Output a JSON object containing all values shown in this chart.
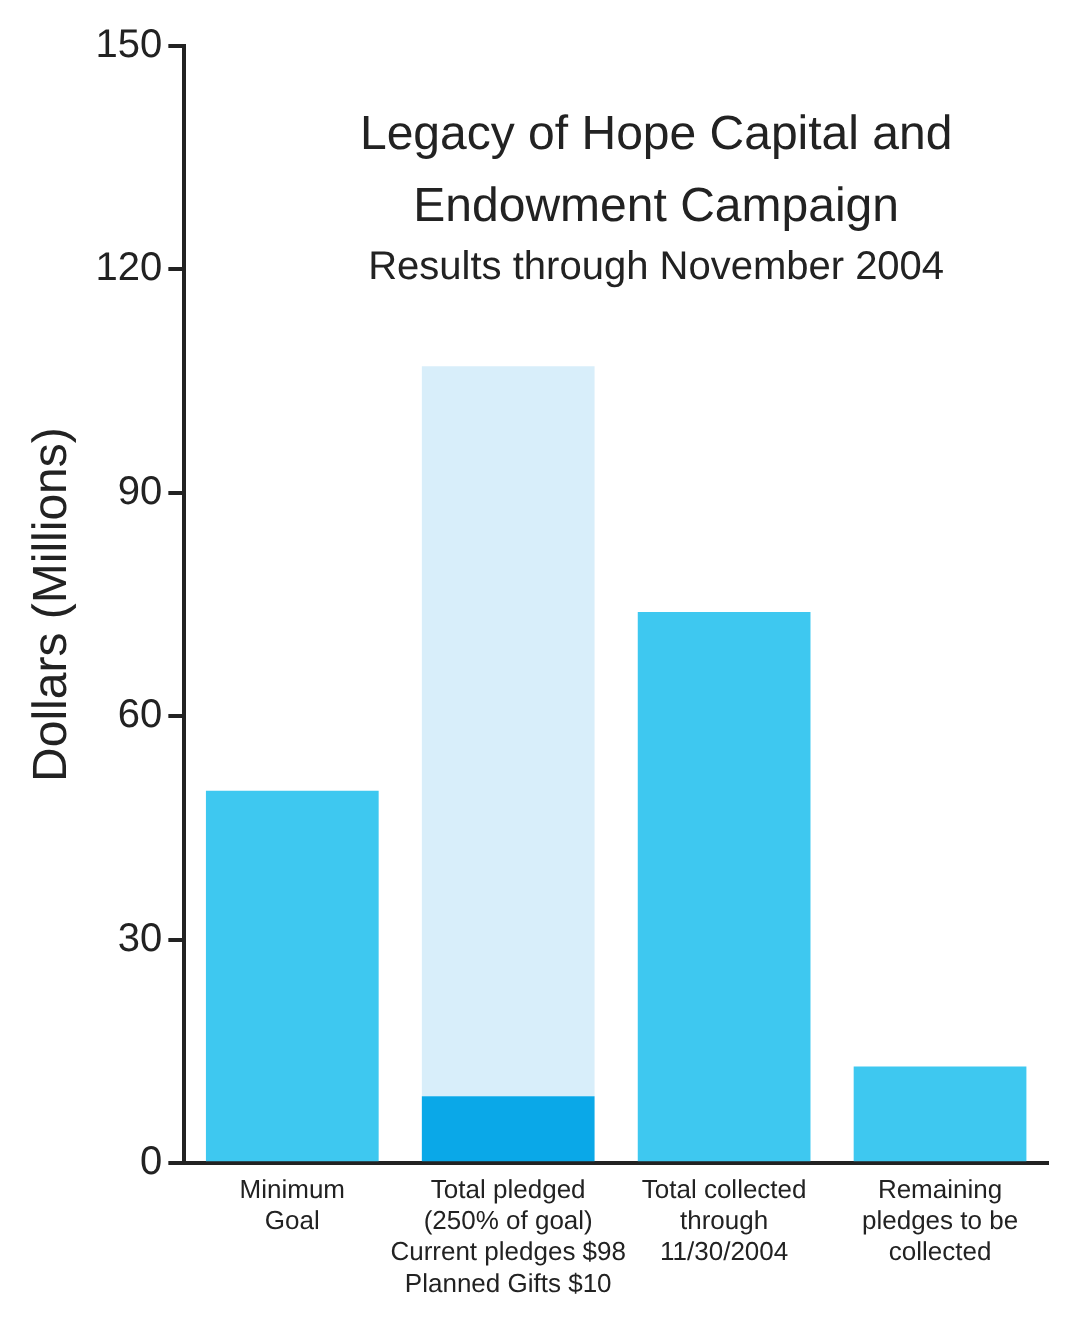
{
  "chart_data": {
    "type": "bar",
    "title": "Legacy of Hope Capital and Endowment Campaign",
    "subtitle": "Results through November 2004",
    "ylabel": "Dollars (Millions)",
    "categories": [
      "Minimum\nGoal",
      "Total pledged\n(250% of goal)\nCurrent pledges $98\nPlanned Gifts $10",
      "Total collected\nthrough\n11/30/2004",
      "Remaining\npledges to be\ncollected"
    ],
    "stacked": true,
    "series": [
      {
        "colors": [
          "#3ec8f0",
          "#0aa8e8",
          "#3ec8f0",
          "#3ec8f0"
        ],
        "values": [
          50,
          9,
          74,
          13
        ]
      },
      {
        "color": "#d8eefa",
        "values": [
          null,
          98,
          null,
          null
        ]
      }
    ],
    "ylim": [
      0,
      150
    ],
    "yticks": [
      0,
      30,
      60,
      90,
      120,
      150
    ],
    "grid": false,
    "legend": false
  }
}
